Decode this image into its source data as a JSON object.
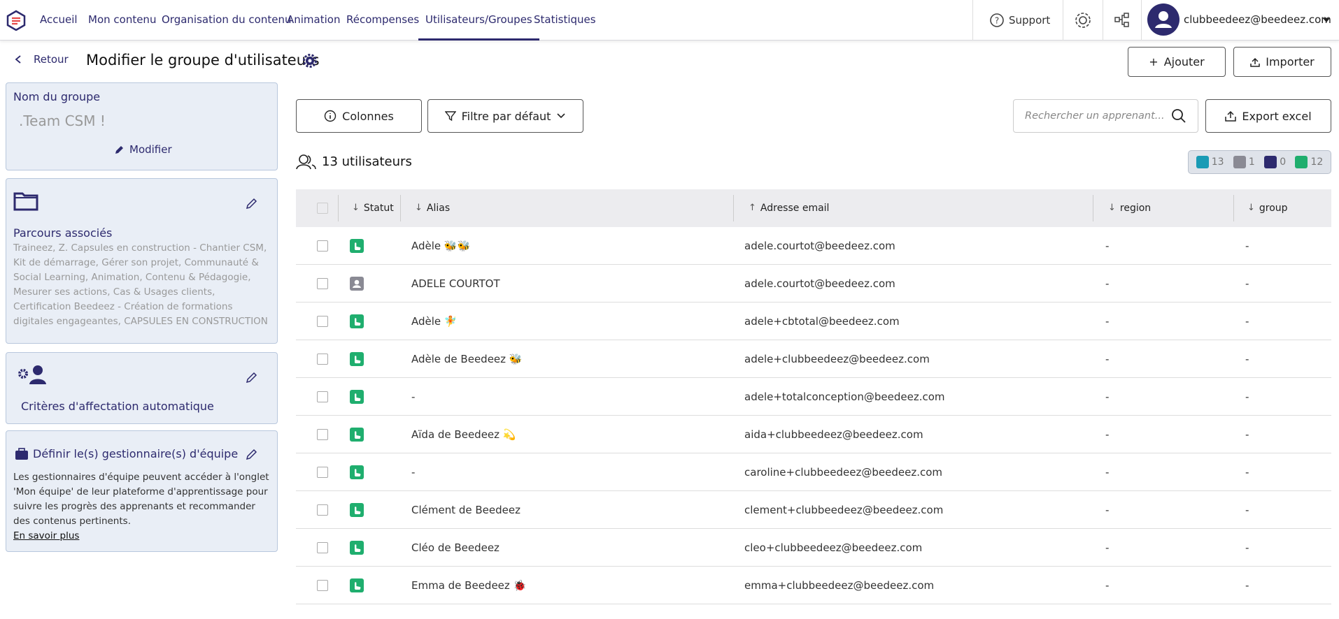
{
  "nav": {
    "items": [
      "Accueil",
      "Mon contenu",
      "Organisation du contenu",
      "Animation",
      "Récompenses",
      "Utilisateurs/Groupes",
      "Statistiques"
    ],
    "active": 5,
    "support": "Support",
    "user": "clubbeedeez@beedeez.com"
  },
  "header": {
    "back": "Retour",
    "title": "Modifier le groupe d'utilisateurs",
    "add": "Ajouter",
    "import": "Importer"
  },
  "group_name": {
    "label": "Nom du groupe",
    "value": ".Team CSM !",
    "edit": "Modifier"
  },
  "paths": {
    "title": "Parcours associés",
    "text": "Traineez, Z. Capsules en construction - Chantier CSM, Kit de démarrage, Gérer son projet, Communauté & Social Learning, Animation, Contenu & Pédagogie, Mesurer ses actions, Cas & Usages clients, Certification Beedeez - Création de formations digitales engageantes, CAPSULES EN CONSTRUCTION"
  },
  "criteria": {
    "title": "Critères d'affectation automatique"
  },
  "managers": {
    "title": "Définir le(s) gestionnaire(s) d'équipe",
    "text": "Les gestionnaires d'équipe peuvent accéder à l'onglet 'Mon équipe' de leur plateforme d'apprentissage pour suivre les progrès des apprenants et recommander des contenus pertinents.",
    "link": "En savoir plus"
  },
  "toolbar": {
    "columns": "Colonnes",
    "filter": "Filtre par défaut",
    "search": "Rechercher un apprenant...",
    "export": "Export excel"
  },
  "count": "13 utilisateurs",
  "badges": [
    {
      "value": 13,
      "color": "#1a9bb5"
    },
    {
      "value": 1,
      "color": "#8a8a94"
    },
    {
      "value": 0,
      "color": "#2d2a6e"
    },
    {
      "value": 12,
      "color": "#1fae6e"
    }
  ],
  "table": {
    "columns": [
      "Statut",
      "Alias",
      "Adresse email",
      "region",
      "group"
    ],
    "rows": [
      {
        "status": "active",
        "cells": [
          "Adèle 🐝🐝",
          "adele.courtot@beedeez.com",
          "-",
          "-"
        ]
      },
      {
        "status": "inactive",
        "cells": [
          "ADELE COURTOT",
          "adele.courtot@beedeez.com",
          "-",
          "-"
        ]
      },
      {
        "status": "active",
        "cells": [
          "Adèle 🧚",
          "adele+cbtotal@beedeez.com",
          "-",
          "-"
        ]
      },
      {
        "status": "active",
        "cells": [
          "Adèle de Beedeez 🐝",
          "adele+clubbeedeez@beedeez.com",
          "-",
          "-"
        ]
      },
      {
        "status": "active",
        "cells": [
          "-",
          "adele+totalconception@beedeez.com",
          "-",
          "-"
        ]
      },
      {
        "status": "active",
        "cells": [
          "Aïda de Beedeez 💫",
          "aida+clubbeedeez@beedeez.com",
          "-",
          "-"
        ]
      },
      {
        "status": "active",
        "cells": [
          "-",
          "caroline+clubbeedeez@beedeez.com",
          "-",
          "-"
        ]
      },
      {
        "status": "active",
        "cells": [
          "Clément de Beedeez",
          "clement+clubbeedeez@beedeez.com",
          "-",
          "-"
        ]
      },
      {
        "status": "active",
        "cells": [
          "Cléo de Beedeez",
          "cleo+clubbeedeez@beedeez.com",
          "-",
          "-"
        ]
      },
      {
        "status": "active",
        "cells": [
          "Emma de Beedeez 🐞",
          "emma+clubbeedeez@beedeez.com",
          "-",
          "-"
        ]
      }
    ]
  }
}
